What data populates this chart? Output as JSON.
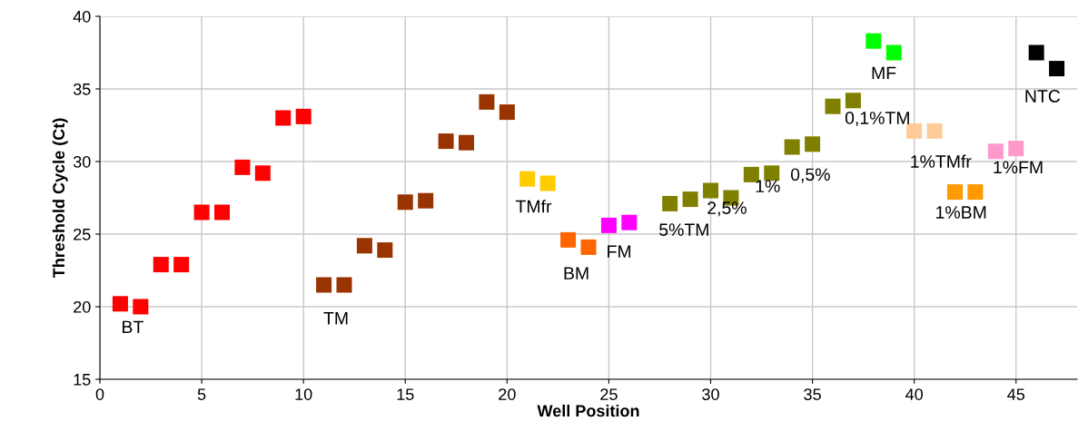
{
  "chart_data": {
    "type": "scatter",
    "xlabel": "Well Position",
    "ylabel": "Threshold Cycle (Ct)",
    "marker": "square",
    "grid": true,
    "xlim": [
      0,
      48
    ],
    "xticks": [
      0,
      5,
      10,
      15,
      20,
      25,
      30,
      35,
      40,
      45
    ],
    "ylim": [
      15,
      40
    ],
    "yticks": [
      15,
      20,
      25,
      30,
      35,
      40
    ],
    "series": [
      {
        "name": "BT",
        "color": "#ff0000",
        "x": [
          1,
          2,
          3,
          4,
          5,
          6,
          7,
          8,
          9,
          10
        ],
        "values": [
          20.2,
          20.0,
          22.9,
          22.9,
          26.5,
          26.5,
          29.6,
          29.2,
          33.0,
          33.1
        ]
      },
      {
        "name": "TM",
        "color": "#993300",
        "x": [
          11,
          12,
          13,
          14,
          15,
          16,
          17,
          18,
          19,
          20
        ],
        "values": [
          21.5,
          21.5,
          24.2,
          23.9,
          27.2,
          27.3,
          31.4,
          31.3,
          34.1,
          33.4
        ]
      },
      {
        "name": "TMfr",
        "color": "#ffcc00",
        "x": [
          21,
          22
        ],
        "values": [
          28.8,
          28.5
        ]
      },
      {
        "name": "BM",
        "color": "#ff6600",
        "x": [
          23,
          24
        ],
        "values": [
          24.6,
          24.1
        ]
      },
      {
        "name": "FM",
        "color": "#ff00ff",
        "x": [
          25,
          26
        ],
        "values": [
          25.6,
          25.8
        ]
      },
      {
        "name": "5%TM",
        "color": "#808000",
        "x": [
          28,
          29
        ],
        "values": [
          27.1,
          27.4
        ]
      },
      {
        "name": "2,5%",
        "color": "#808000",
        "x": [
          30,
          31
        ],
        "values": [
          28.0,
          27.5
        ]
      },
      {
        "name": "1%",
        "color": "#808000",
        "x": [
          32,
          33
        ],
        "values": [
          29.1,
          29.2
        ]
      },
      {
        "name": "0,5%",
        "color": "#808000",
        "x": [
          34,
          35
        ],
        "values": [
          31.0,
          31.2
        ]
      },
      {
        "name": "0,1%TM",
        "color": "#808000",
        "x": [
          36,
          37
        ],
        "values": [
          33.8,
          34.2
        ]
      },
      {
        "name": "MF",
        "color": "#00ff00",
        "x": [
          38,
          39
        ],
        "values": [
          38.3,
          37.5
        ]
      },
      {
        "name": "1%TMfr",
        "color": "#ffcc99",
        "x": [
          40,
          41
        ],
        "values": [
          32.1,
          32.1
        ]
      },
      {
        "name": "1%BM",
        "color": "#ff9900",
        "x": [
          42,
          43
        ],
        "values": [
          27.9,
          27.9
        ]
      },
      {
        "name": "1%FM",
        "color": "#ff99cc",
        "x": [
          44,
          45
        ],
        "values": [
          30.7,
          30.9
        ]
      },
      {
        "name": "NTC",
        "color": "#000000",
        "x": [
          46,
          47
        ],
        "values": [
          37.5,
          36.4
        ]
      }
    ]
  }
}
